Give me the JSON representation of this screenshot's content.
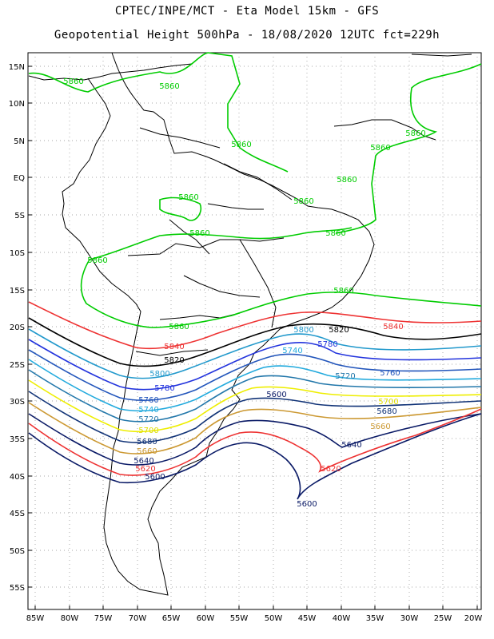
{
  "title_line1": "CPTEC/INPE/MCT -  Eta Model 15km - GFS",
  "title_line2": "Geopotential Height 500hPa - 18/08/2020 12UTC fct=229h",
  "lat_labels": [
    "15N",
    "10N",
    "5N",
    "EQ",
    "5S",
    "10S",
    "15S",
    "20S",
    "25S",
    "30S",
    "35S",
    "40S",
    "45S",
    "50S",
    "55S"
  ],
  "lon_labels": [
    "85W",
    "80W",
    "75W",
    "70W",
    "65W",
    "60W",
    "55W",
    "50W",
    "45W",
    "40W",
    "35W",
    "30W",
    "25W",
    "20W"
  ],
  "contour_labels": [
    {
      "text": "5860",
      "color": "#00cc00"
    },
    {
      "text": "5860",
      "color": "#00cc00"
    },
    {
      "text": "5860",
      "color": "#00cc00"
    },
    {
      "text": "5860",
      "color": "#00cc00"
    },
    {
      "text": "5860",
      "color": "#00cc00"
    },
    {
      "text": "5860",
      "color": "#00cc00"
    },
    {
      "text": "5860",
      "color": "#00cc00"
    },
    {
      "text": "5860",
      "color": "#00cc00"
    },
    {
      "text": "5860",
      "color": "#00cc00"
    },
    {
      "text": "5860",
      "color": "#00cc00"
    },
    {
      "text": "5860",
      "color": "#00cc00"
    },
    {
      "text": "5860",
      "color": "#00cc00"
    },
    {
      "text": "5860",
      "color": "#00cc00"
    },
    {
      "text": "5840",
      "color": "#ee3333"
    },
    {
      "text": "5840",
      "color": "#ee3333"
    },
    {
      "text": "5820",
      "color": "#000000"
    },
    {
      "text": "5820",
      "color": "#000000"
    },
    {
      "text": "5800",
      "color": "#2299cc"
    },
    {
      "text": "5800",
      "color": "#2299cc"
    },
    {
      "text": "5780",
      "color": "#2233dd"
    },
    {
      "text": "5780",
      "color": "#2233dd"
    },
    {
      "text": "5760",
      "color": "#2255bb"
    },
    {
      "text": "5760",
      "color": "#2255bb"
    },
    {
      "text": "5740",
      "color": "#22aadd"
    },
    {
      "text": "5740",
      "color": "#22aadd"
    },
    {
      "text": "5720",
      "color": "#2277aa"
    },
    {
      "text": "5720",
      "color": "#2277aa"
    },
    {
      "text": "5700",
      "color": "#eeee00"
    },
    {
      "text": "5700",
      "color": "#eeee00"
    },
    {
      "text": "5680",
      "color": "#113377"
    },
    {
      "text": "5680",
      "color": "#113377"
    },
    {
      "text": "5660",
      "color": "#cc9933"
    },
    {
      "text": "5660",
      "color": "#cc9933"
    },
    {
      "text": "5640",
      "color": "#0a1a66"
    },
    {
      "text": "5640",
      "color": "#0a1a66"
    },
    {
      "text": "5620",
      "color": "#ee3333"
    },
    {
      "text": "5620",
      "color": "#ee3333"
    },
    {
      "text": "5600",
      "color": "#0a1a66"
    },
    {
      "text": "5600",
      "color": "#0a1a66"
    },
    {
      "text": "5600",
      "color": "#0a1a66"
    }
  ],
  "colors": {
    "c5860": "#00cc00",
    "c5840": "#ee3333",
    "c5820": "#000000",
    "c5800": "#2299cc",
    "c5780": "#2233dd",
    "c5760": "#2255bb",
    "c5740": "#22aadd",
    "c5720": "#2277aa",
    "c5700": "#eeee00",
    "c5680": "#113377",
    "c5660": "#cc9933",
    "c5640": "#0a1a66",
    "c5620": "#ee3333",
    "c5600": "#0a1a66"
  }
}
